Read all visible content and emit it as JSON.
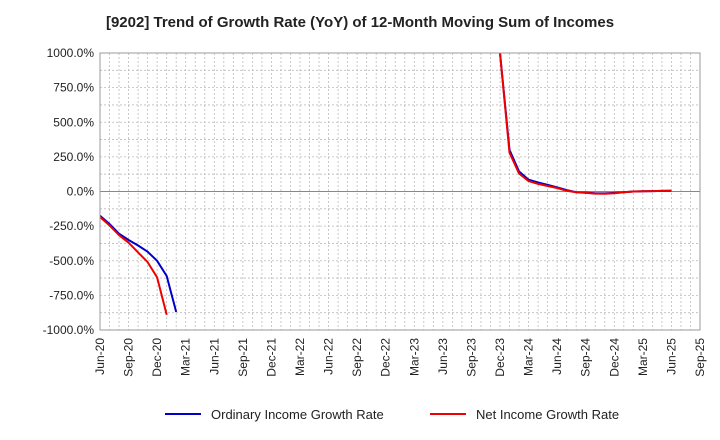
{
  "chart_data": {
    "type": "line",
    "title": "[9202]  Trend of Growth Rate (YoY) of 12-Month Moving Sum of Incomes",
    "xlabel": "",
    "ylabel": "",
    "ylim": [
      -1000,
      1000
    ],
    "y_ticks": [
      1000,
      750,
      500,
      250,
      0,
      -250,
      -500,
      -750,
      -1000
    ],
    "y_tick_labels": [
      "1000.0%",
      "750.0%",
      "500.0%",
      "250.0%",
      "0.0%",
      "-250.0%",
      "-500.0%",
      "-750.0%",
      "-1000.0%"
    ],
    "x_tick_labels": [
      "Jun-20",
      "Sep-20",
      "Dec-20",
      "Mar-21",
      "Jun-21",
      "Sep-21",
      "Dec-21",
      "Mar-22",
      "Jun-22",
      "Sep-22",
      "Dec-22",
      "Mar-23",
      "Jun-23",
      "Sep-23",
      "Dec-23",
      "Mar-24",
      "Jun-24",
      "Sep-24",
      "Dec-24",
      "Mar-25",
      "Jun-25",
      "Sep-25"
    ],
    "x_start": "2020-06",
    "x_end": "2025-09",
    "grid": true,
    "legend_position": "bottom",
    "series": [
      {
        "name": "Ordinary Income Growth Rate",
        "color": "#0000cc",
        "segments": [
          [
            [
              "2020-06",
              -175
            ],
            [
              "2020-07",
              -235
            ],
            [
              "2020-08",
              -305
            ],
            [
              "2020-09",
              -350
            ],
            [
              "2020-10",
              -390
            ],
            [
              "2020-11",
              -435
            ],
            [
              "2020-12",
              -500
            ],
            [
              "2021-01",
              -610
            ],
            [
              "2021-02",
              -870
            ]
          ],
          [
            [
              "2023-12",
              1000
            ],
            [
              "2024-01",
              300
            ],
            [
              "2024-02",
              145
            ],
            [
              "2024-03",
              85
            ],
            [
              "2024-04",
              65
            ],
            [
              "2024-05",
              48
            ],
            [
              "2024-06",
              30
            ],
            [
              "2024-07",
              10
            ],
            [
              "2024-08",
              -5
            ],
            [
              "2024-09",
              -8
            ],
            [
              "2024-10",
              -12
            ],
            [
              "2024-11",
              -14
            ],
            [
              "2024-12",
              -10
            ],
            [
              "2025-01",
              -5
            ],
            [
              "2025-02",
              0
            ],
            [
              "2025-03",
              2
            ],
            [
              "2025-04",
              3
            ],
            [
              "2025-05",
              4
            ],
            [
              "2025-06",
              5
            ]
          ]
        ]
      },
      {
        "name": "Net Income Growth Rate",
        "color": "#ee0000",
        "segments": [
          [
            [
              "2020-06",
              -185
            ],
            [
              "2020-07",
              -245
            ],
            [
              "2020-08",
              -315
            ],
            [
              "2020-09",
              -370
            ],
            [
              "2020-10",
              -440
            ],
            [
              "2020-11",
              -510
            ],
            [
              "2020-12",
              -620
            ],
            [
              "2021-01",
              -890
            ]
          ],
          [
            [
              "2023-12",
              1000
            ],
            [
              "2024-01",
              280
            ],
            [
              "2024-02",
              130
            ],
            [
              "2024-03",
              75
            ],
            [
              "2024-04",
              55
            ],
            [
              "2024-05",
              40
            ],
            [
              "2024-06",
              25
            ],
            [
              "2024-07",
              5
            ],
            [
              "2024-08",
              -5
            ],
            [
              "2024-09",
              -10
            ],
            [
              "2024-10",
              -15
            ],
            [
              "2024-11",
              -16
            ],
            [
              "2024-12",
              -12
            ],
            [
              "2025-01",
              -5
            ],
            [
              "2025-02",
              0
            ],
            [
              "2025-03",
              2
            ],
            [
              "2025-04",
              3
            ],
            [
              "2025-05",
              4
            ],
            [
              "2025-06",
              5
            ]
          ]
        ]
      }
    ]
  }
}
